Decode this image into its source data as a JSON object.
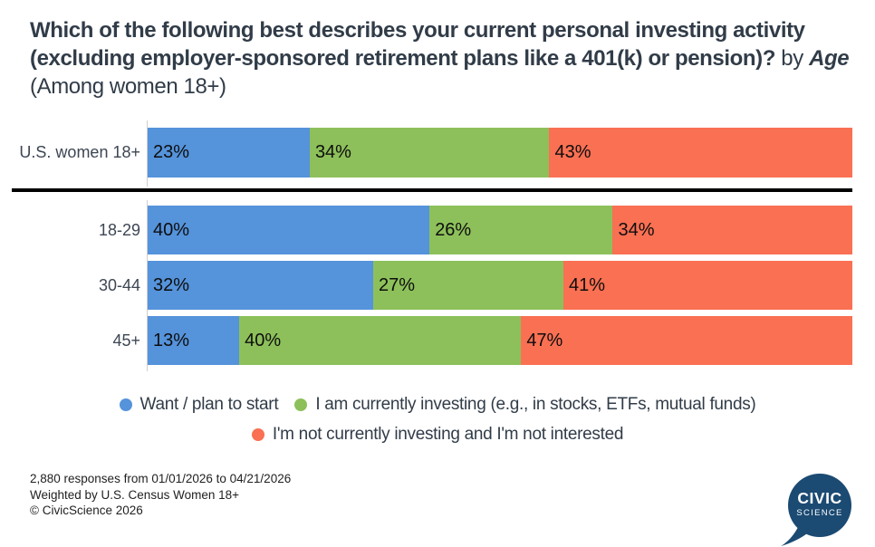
{
  "title": {
    "question": "Which of the following best describes your current personal investing activity (excluding employer-sponsored retirement plans like a 401(k) or pension)?",
    "by": " by ",
    "breakdown": "Age",
    "among": " (Among women 18+)"
  },
  "chart_data": {
    "type": "bar",
    "orientation": "horizontal",
    "stacked": true,
    "unit": "%",
    "xlim": [
      0,
      100
    ],
    "grid": false,
    "legend_position": "bottom",
    "categories": [
      "U.S. women 18+",
      "18-29",
      "30-44",
      "45+"
    ],
    "series": [
      {
        "name": "Want / plan to start",
        "color": "#5593db",
        "values": [
          23,
          40,
          32,
          13
        ]
      },
      {
        "name": "I am currently investing (e.g., in stocks, ETFs, mutual funds)",
        "color": "#8dc05a",
        "values": [
          34,
          26,
          27,
          40
        ]
      },
      {
        "name": "I'm not currently investing and I'm not interested",
        "color": "#fa7053",
        "values": [
          43,
          34,
          41,
          47
        ]
      }
    ],
    "notes": "First row is overall U.S. women 18+, separated from age-group rows by a black divider line"
  },
  "footer": {
    "responses": "2,880 responses from 01/01/2026 to 04/21/2026",
    "weighting": "Weighted by U.S. Census Women 18+",
    "copyright": "© CivicScience 2026"
  },
  "logo": {
    "line1": "CIVIC",
    "line2": "SCIENCE",
    "color": "#1b4a72"
  }
}
